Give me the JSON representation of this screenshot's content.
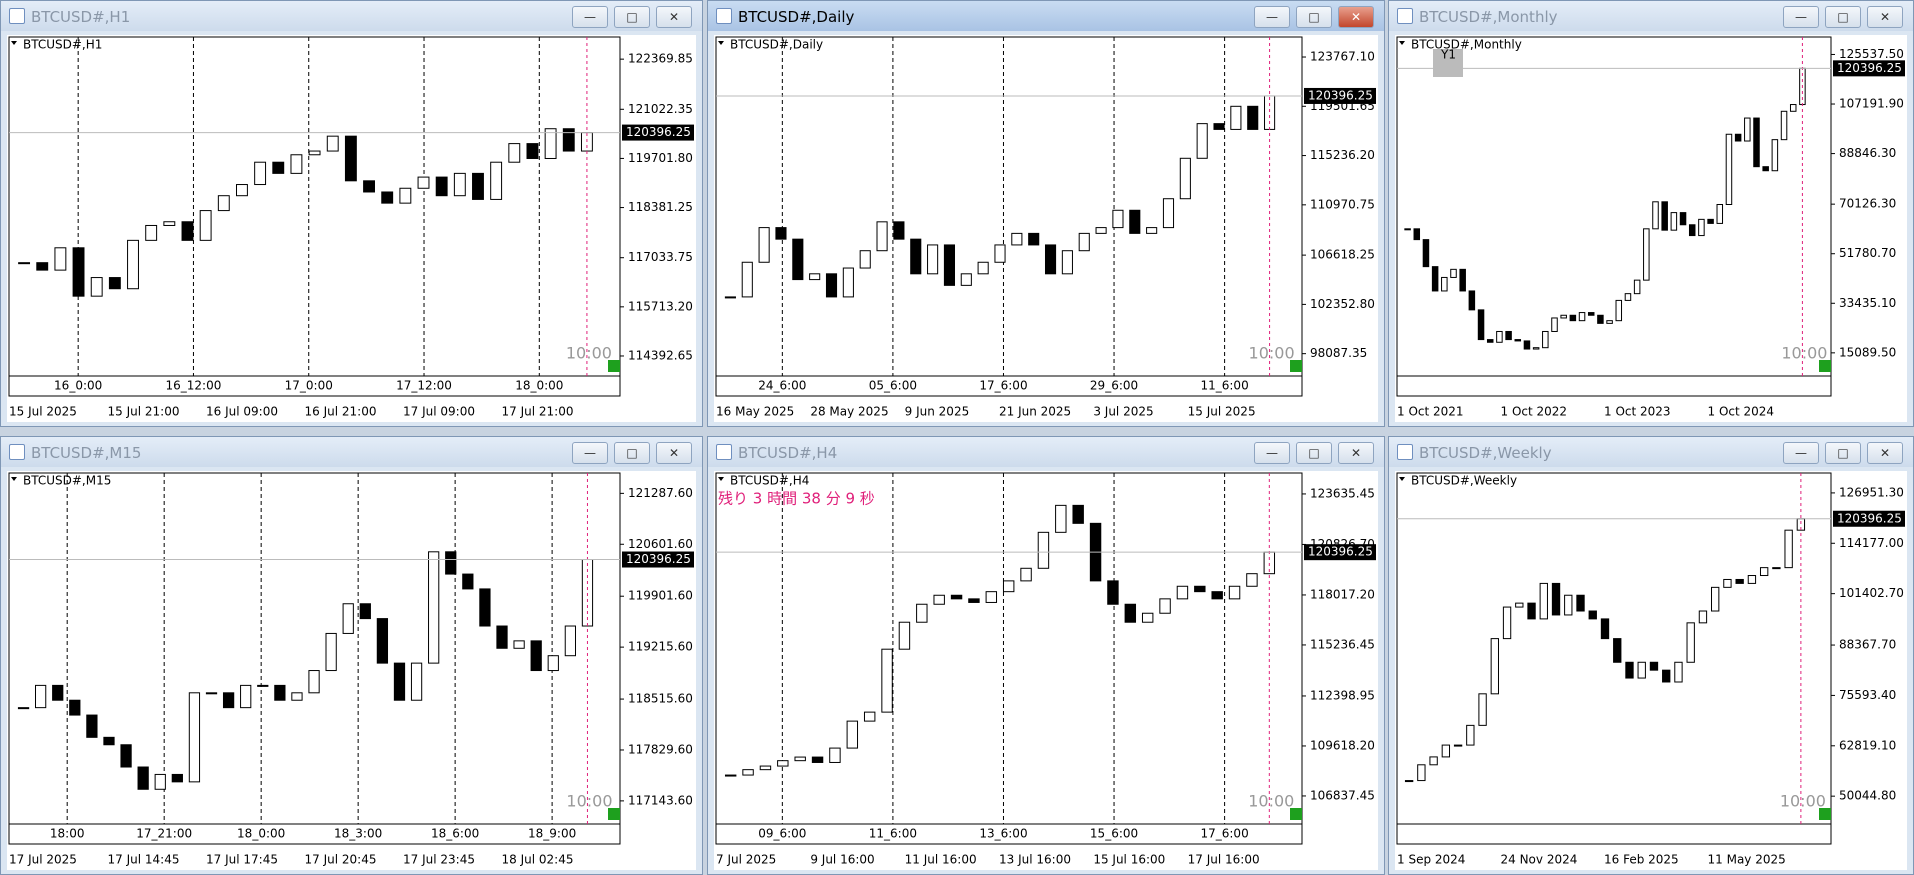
{
  "windows": [
    {
      "title": "BTCUSD#,H1",
      "label": "BTCUSD#,H1",
      "ylim": [
        113962,
        122965
      ],
      "yticks": [
        "122369.85",
        "121022.35",
        "119701.80",
        "118381.25",
        "117033.75",
        "115713.20",
        "114392.65"
      ],
      "current": 120396.25,
      "time_labels": [
        "16_0:00",
        "16_12:00",
        "17_0:00",
        "17_12:00",
        "18_0:00"
      ],
      "dates": [
        "15 Jul 2025",
        "15 Jul 21:00",
        "16 Jul 09:00",
        "16 Jul 21:00",
        "17 Jul 09:00",
        "17 Jul 21:00"
      ],
      "clock": "10:00",
      "closes": [
        116900,
        116700,
        117300,
        116000,
        116500,
        116200,
        117500,
        117900,
        118000,
        117500,
        118300,
        118700,
        119000,
        119600,
        119300,
        119800,
        119900,
        120300,
        119100,
        118800,
        118500,
        118900,
        119200,
        118700,
        119300,
        118600,
        119600,
        120100,
        119700,
        120500,
        119900,
        120396.25
      ]
    },
    {
      "title": "BTCUSD#,Daily",
      "label": "BTCUSD#,Daily",
      "ylim": [
        96500,
        125500
      ],
      "yticks": [
        "123767.10",
        "119501.65",
        "115236.20",
        "110970.75",
        "106618.25",
        "102352.80",
        "98087.35"
      ],
      "current": 120396.25,
      "time_labels": [
        "24_6:00",
        "05_6:00",
        "17_6:00",
        "29_6:00",
        "11_6:00"
      ],
      "dates": [
        "16 May 2025",
        "28 May 2025",
        "9 Jun 2025",
        "21 Jun 2025",
        "3 Jul 2025",
        "15 Jul 2025"
      ],
      "clock": "10:00",
      "closes": [
        103000,
        106000,
        109000,
        108000,
        104500,
        105000,
        103000,
        105500,
        107000,
        109500,
        108000,
        105000,
        107500,
        104000,
        105000,
        106000,
        107500,
        108500,
        107500,
        105000,
        107000,
        108500,
        109000,
        110500,
        108500,
        109000,
        111500,
        115000,
        118000,
        117500,
        119500,
        117500,
        120396.25
      ]
    },
    {
      "title": "BTCUSD#,Monthly",
      "label": "BTCUSD#,Monthly",
      "ylim": [
        8000,
        132000
      ],
      "yticks": [
        "125537.50",
        "107191.90",
        "88846.30",
        "70126.30",
        "51780.70",
        "33435.10",
        "15089.50"
      ],
      "current": 120396.25,
      "time_labels": [],
      "dates": [
        "1 Oct 2021",
        "1 Oct 2022",
        "1 Oct 2023",
        "1 Oct 2024"
      ],
      "clock": "10:00",
      "badge": "Y1",
      "closes": [
        61000,
        57000,
        47000,
        38000,
        43000,
        46000,
        38000,
        31000,
        20000,
        19000,
        23000,
        20000,
        19500,
        16500,
        17000,
        23000,
        28000,
        29000,
        27000,
        30000,
        29000,
        26000,
        27000,
        34500,
        37000,
        42000,
        61000,
        71000,
        60500,
        67000,
        62500,
        58500,
        64500,
        63000,
        70000,
        96000,
        93500,
        102000,
        84000,
        82500,
        94000,
        104500,
        107000,
        120396.25
      ]
    },
    {
      "title": "BTCUSD#,M15",
      "label": "BTCUSD#,M15",
      "ylim": [
        116886,
        121562
      ],
      "yticks": [
        "121287.60",
        "120601.60",
        "119901.60",
        "119215.60",
        "118515.60",
        "117829.60",
        "117143.60"
      ],
      "current": 120396.25,
      "time_labels": [
        "18:00",
        "17_21:00",
        "18_0:00",
        "18_3:00",
        "18_6:00",
        "18_9:00"
      ],
      "dates": [
        "17 Jul 2025",
        "17 Jul 14:45",
        "17 Jul 17:45",
        "17 Jul 20:45",
        "17 Jul 23:45",
        "18 Jul 02:45"
      ],
      "clock": "10:00",
      "closes": [
        118400,
        118700,
        118500,
        118300,
        118000,
        117900,
        117600,
        117300,
        117500,
        117400,
        118600,
        118600,
        118400,
        118700,
        118700,
        118500,
        118600,
        118900,
        119400,
        119800,
        119600,
        119000,
        118500,
        119000,
        120500,
        120200,
        120000,
        119500,
        119200,
        119300,
        118900,
        119100,
        119500,
        120396.25
      ]
    },
    {
      "title": "BTCUSD#,H4",
      "label": "BTCUSD#,H4",
      "ylim": [
        105500,
        124800
      ],
      "yticks": [
        "123635.45",
        "120826.70",
        "118017.20",
        "115236.45",
        "112398.95",
        "109618.20",
        "106837.45"
      ],
      "current": 120396.25,
      "time_labels": [
        "09_6:00",
        "11_6:00",
        "13_6:00",
        "15_6:00",
        "17_6:00"
      ],
      "dates": [
        "7 Jul 2025",
        "9 Jul 16:00",
        "11 Jul 16:00",
        "13 Jul 16:00",
        "15 Jul 16:00",
        "17 Jul 16:00"
      ],
      "clock": "10:00",
      "countdown": "残り 3 時間 38 分 9 秒",
      "closes": [
        108000,
        108300,
        108500,
        108800,
        109000,
        108700,
        109500,
        111000,
        111500,
        115000,
        116500,
        117500,
        118000,
        117800,
        117600,
        118200,
        118800,
        119500,
        121500,
        123000,
        122000,
        118800,
        117500,
        116500,
        117000,
        117800,
        118500,
        118200,
        117800,
        118500,
        119200,
        120396.25
      ]
    },
    {
      "title": "BTCUSD#,Weekly",
      "label": "BTCUSD#,Weekly",
      "ylim": [
        44000,
        132000
      ],
      "yticks": [
        "126951.30",
        "114177.00",
        "101402.70",
        "88367.70",
        "75593.40",
        "62819.10",
        "50044.80"
      ],
      "current": 120396.25,
      "time_labels": [],
      "dates": [
        "1 Sep 2024",
        "24 Nov 2024",
        "16 Feb 2025",
        "11 May 2025"
      ],
      "clock": "10:00",
      "closes": [
        54000,
        58000,
        60000,
        63000,
        63000,
        68000,
        76000,
        90000,
        98000,
        99000,
        95000,
        104000,
        96000,
        101000,
        97000,
        95000,
        90000,
        84000,
        80000,
        84000,
        82000,
        79000,
        84000,
        94000,
        97000,
        103000,
        105000,
        104000,
        106000,
        108000,
        108000,
        117500,
        120396.25
      ]
    }
  ]
}
